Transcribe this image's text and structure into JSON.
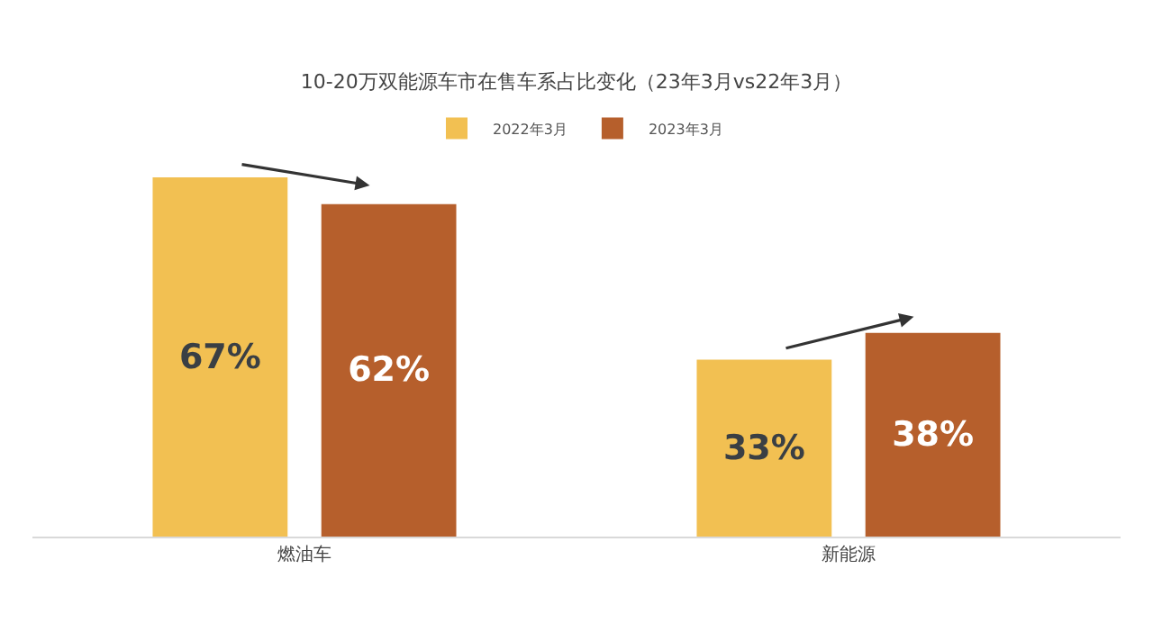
{
  "chart_data": {
    "type": "bar",
    "title": "10-20万双能源车市在售车系占比变化（23年3月vs22年3月）",
    "categories": [
      "燃油车",
      "新能源"
    ],
    "series": [
      {
        "name": "2022年3月",
        "color": "#f2c052",
        "values": [
          67,
          33
        ],
        "value_labels": [
          "67%",
          "33%"
        ]
      },
      {
        "name": "2023年3月",
        "color": "#b65f2c",
        "values": [
          62,
          38
        ],
        "value_labels": [
          "62%",
          "38%"
        ]
      }
    ],
    "tick_labels": "x",
    "legend": "top"
  }
}
